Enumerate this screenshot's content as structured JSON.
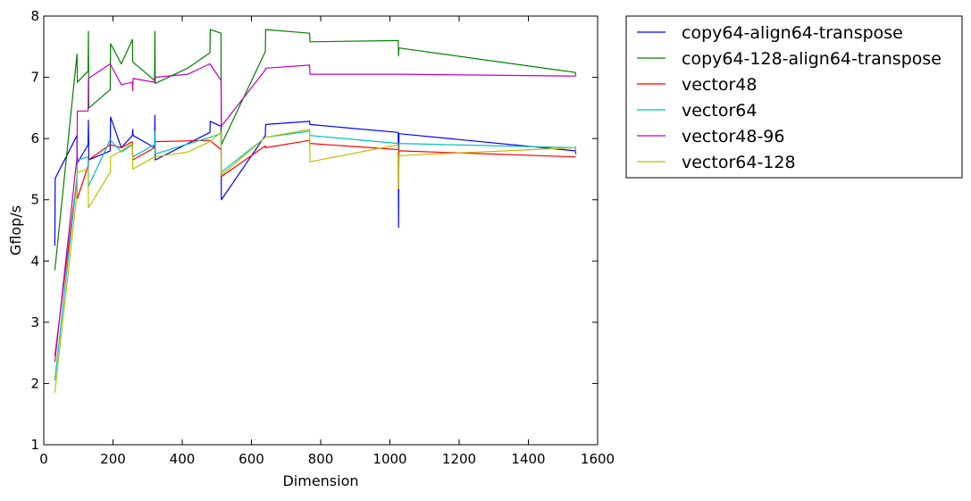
{
  "chart_data": {
    "type": "line",
    "title": "",
    "xlabel": "Dimension",
    "ylabel": "Gflop/s",
    "xlim": [
      0,
      1600
    ],
    "ylim": [
      1,
      8
    ],
    "xticks": [
      0,
      200,
      400,
      600,
      800,
      1000,
      1200,
      1400,
      1600
    ],
    "yticks": [
      1,
      2,
      3,
      4,
      5,
      6,
      7,
      8
    ],
    "grid": false,
    "legend_position": "outside-top-right",
    "series": [
      {
        "name": "copy64-align64-transpose",
        "color": "#0000ff",
        "points": [
          [
            32,
            4.25
          ],
          [
            33,
            5.35
          ],
          [
            96,
            6.05
          ],
          [
            97,
            5.6
          ],
          [
            128,
            5.9
          ],
          [
            129,
            6.3
          ],
          [
            130,
            5.65
          ],
          [
            192,
            5.8
          ],
          [
            193,
            6.35
          ],
          [
            224,
            5.85
          ],
          [
            256,
            6.05
          ],
          [
            257,
            6.15
          ],
          [
            258,
            6.05
          ],
          [
            320,
            5.85
          ],
          [
            321,
            6.38
          ],
          [
            322,
            5.65
          ],
          [
            480,
            6.1
          ],
          [
            481,
            6.28
          ],
          [
            512,
            6.2
          ],
          [
            513,
            5.0
          ],
          [
            640,
            6.05
          ],
          [
            641,
            6.23
          ],
          [
            768,
            6.28
          ],
          [
            769,
            6.23
          ],
          [
            1024,
            6.1
          ],
          [
            1025,
            4.55
          ],
          [
            1026,
            6.08
          ],
          [
            1536,
            5.8
          ],
          [
            1537,
            5.75
          ]
        ]
      },
      {
        "name": "copy64-128-align64-transpose",
        "color": "#008000",
        "points": [
          [
            32,
            3.85
          ],
          [
            96,
            7.38
          ],
          [
            97,
            6.92
          ],
          [
            128,
            7.1
          ],
          [
            129,
            7.75
          ],
          [
            130,
            6.5
          ],
          [
            192,
            6.8
          ],
          [
            193,
            7.55
          ],
          [
            224,
            7.22
          ],
          [
            256,
            7.62
          ],
          [
            257,
            7.25
          ],
          [
            320,
            6.95
          ],
          [
            321,
            7.75
          ],
          [
            322,
            6.9
          ],
          [
            416,
            7.15
          ],
          [
            480,
            7.4
          ],
          [
            481,
            7.78
          ],
          [
            512,
            7.72
          ],
          [
            513,
            5.9
          ],
          [
            640,
            7.42
          ],
          [
            641,
            7.78
          ],
          [
            768,
            7.72
          ],
          [
            769,
            7.58
          ],
          [
            1024,
            7.6
          ],
          [
            1025,
            7.35
          ],
          [
            1026,
            7.48
          ],
          [
            1536,
            7.08
          ],
          [
            1537,
            7.02
          ]
        ]
      },
      {
        "name": "vector48",
        "color": "#ff0000",
        "points": [
          [
            32,
            2.45
          ],
          [
            96,
            5.35
          ],
          [
            97,
            5.02
          ],
          [
            128,
            5.55
          ],
          [
            129,
            5.65
          ],
          [
            192,
            5.9
          ],
          [
            224,
            5.85
          ],
          [
            256,
            5.95
          ],
          [
            257,
            5.65
          ],
          [
            320,
            5.85
          ],
          [
            321,
            5.95
          ],
          [
            480,
            5.97
          ],
          [
            512,
            5.82
          ],
          [
            513,
            5.38
          ],
          [
            640,
            5.88
          ],
          [
            641,
            5.85
          ],
          [
            768,
            5.97
          ],
          [
            769,
            5.92
          ],
          [
            1024,
            5.82
          ],
          [
            1025,
            5.18
          ],
          [
            1026,
            5.8
          ],
          [
            1536,
            5.7
          ],
          [
            1537,
            5.7
          ]
        ]
      },
      {
        "name": "vector64",
        "color": "#00bfbf",
        "points": [
          [
            32,
            2.05
          ],
          [
            96,
            5.35
          ],
          [
            97,
            5.65
          ],
          [
            128,
            5.7
          ],
          [
            129,
            5.22
          ],
          [
            192,
            5.98
          ],
          [
            224,
            5.78
          ],
          [
            256,
            5.9
          ],
          [
            257,
            5.7
          ],
          [
            320,
            5.9
          ],
          [
            321,
            6.12
          ],
          [
            322,
            5.75
          ],
          [
            480,
            6.02
          ],
          [
            512,
            6.08
          ],
          [
            513,
            5.45
          ],
          [
            640,
            6.02
          ],
          [
            768,
            6.12
          ],
          [
            769,
            6.05
          ],
          [
            1024,
            5.92
          ],
          [
            1536,
            5.85
          ],
          [
            1537,
            5.78
          ]
        ]
      },
      {
        "name": "vector48-96",
        "color": "#bf00bf",
        "points": [
          [
            32,
            2.35
          ],
          [
            96,
            5.7
          ],
          [
            97,
            6.45
          ],
          [
            128,
            6.45
          ],
          [
            129,
            6.98
          ],
          [
            192,
            7.22
          ],
          [
            224,
            6.88
          ],
          [
            256,
            6.92
          ],
          [
            257,
            6.78
          ],
          [
            258,
            6.98
          ],
          [
            320,
            6.92
          ],
          [
            321,
            7.0
          ],
          [
            416,
            7.05
          ],
          [
            480,
            7.22
          ],
          [
            512,
            6.95
          ],
          [
            513,
            6.2
          ],
          [
            640,
            7.12
          ],
          [
            641,
            7.15
          ],
          [
            768,
            7.2
          ],
          [
            769,
            7.05
          ],
          [
            1024,
            7.05
          ],
          [
            1536,
            7.02
          ],
          [
            1537,
            7.02
          ]
        ]
      },
      {
        "name": "vector64-128",
        "color": "#bfbf00",
        "points": [
          [
            32,
            1.85
          ],
          [
            96,
            5.1
          ],
          [
            97,
            5.45
          ],
          [
            128,
            5.5
          ],
          [
            129,
            4.87
          ],
          [
            192,
            5.45
          ],
          [
            193,
            5.7
          ],
          [
            224,
            5.8
          ],
          [
            256,
            5.92
          ],
          [
            257,
            5.5
          ],
          [
            320,
            5.7
          ],
          [
            321,
            5.7
          ],
          [
            416,
            5.78
          ],
          [
            480,
            5.95
          ],
          [
            512,
            6.1
          ],
          [
            513,
            5.4
          ],
          [
            640,
            6.02
          ],
          [
            768,
            6.15
          ],
          [
            769,
            5.62
          ],
          [
            1024,
            5.9
          ],
          [
            1025,
            5.18
          ],
          [
            1026,
            5.72
          ],
          [
            1536,
            5.85
          ],
          [
            1537,
            5.88
          ]
        ]
      }
    ]
  }
}
